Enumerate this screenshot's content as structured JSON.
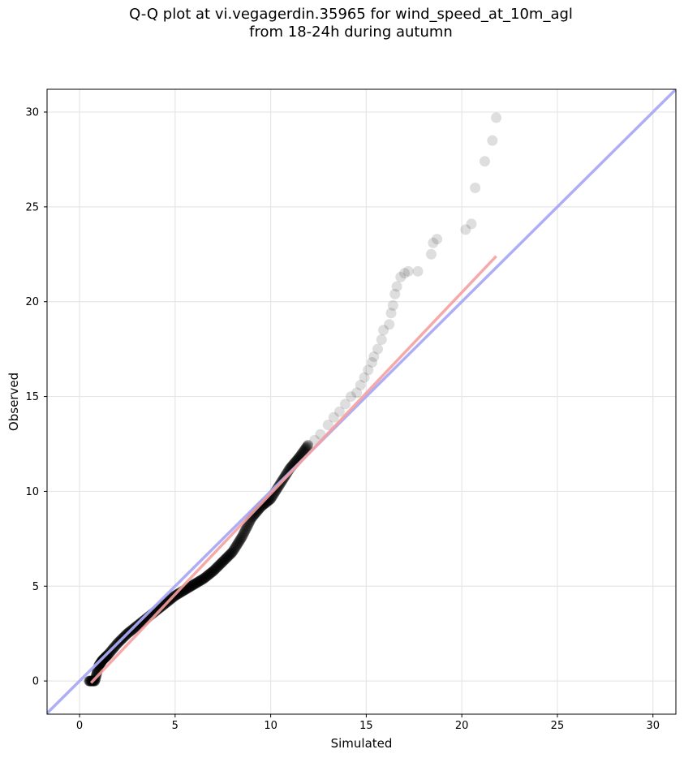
{
  "chart_data": {
    "type": "scatter",
    "title_line1": "Q-Q plot at vi.vegagerdin.35965 for wind_speed_at_10m_agl",
    "title_line2": "from 18-24h during autumn",
    "xlabel": "Simulated",
    "ylabel": "Observed",
    "xlim": [
      -1.7,
      31.2
    ],
    "ylim": [
      -1.75,
      31.2
    ],
    "xticks": [
      0,
      5,
      10,
      15,
      20,
      25,
      30
    ],
    "yticks": [
      0,
      5,
      10,
      15,
      20,
      25,
      30
    ],
    "grid": true,
    "colors": {
      "points": "#000000",
      "identity_line": "#aaaaf5",
      "fit_line": "#f5a0a0",
      "grid": "#e6e6e6"
    },
    "dense_segments": [
      [
        0.5,
        0.0
      ],
      [
        0.8,
        0.0
      ],
      [
        1.0,
        0.8
      ],
      [
        1.2,
        1.1
      ],
      [
        1.5,
        1.4
      ],
      [
        2.0,
        2.0
      ],
      [
        2.5,
        2.5
      ],
      [
        3.0,
        2.9
      ],
      [
        3.5,
        3.3
      ],
      [
        4.0,
        3.7
      ],
      [
        4.5,
        4.1
      ],
      [
        5.0,
        4.5
      ],
      [
        5.5,
        4.8
      ],
      [
        6.0,
        5.1
      ],
      [
        6.5,
        5.4
      ],
      [
        7.0,
        5.8
      ],
      [
        7.5,
        6.3
      ],
      [
        8.0,
        6.8
      ],
      [
        8.5,
        7.6
      ],
      [
        9.0,
        8.6
      ],
      [
        9.5,
        9.2
      ],
      [
        10.0,
        9.6
      ],
      [
        10.5,
        10.4
      ],
      [
        11.0,
        11.2
      ],
      [
        11.5,
        11.8
      ],
      [
        12.0,
        12.5
      ]
    ],
    "tail_points": [
      [
        12.3,
        12.7
      ],
      [
        12.6,
        13.0
      ],
      [
        13.0,
        13.5
      ],
      [
        13.3,
        13.9
      ],
      [
        13.6,
        14.2
      ],
      [
        13.9,
        14.6
      ],
      [
        14.2,
        15.0
      ],
      [
        14.5,
        15.2
      ],
      [
        14.7,
        15.6
      ],
      [
        14.9,
        16.0
      ],
      [
        15.1,
        16.4
      ],
      [
        15.3,
        16.8
      ],
      [
        15.4,
        17.1
      ],
      [
        15.6,
        17.5
      ],
      [
        15.8,
        18.0
      ],
      [
        15.9,
        18.5
      ],
      [
        16.2,
        18.8
      ],
      [
        16.3,
        19.4
      ],
      [
        16.4,
        19.8
      ],
      [
        16.5,
        20.4
      ],
      [
        16.6,
        20.8
      ],
      [
        16.8,
        21.3
      ],
      [
        17.0,
        21.5
      ],
      [
        17.2,
        21.6
      ],
      [
        17.7,
        21.6
      ],
      [
        18.4,
        22.5
      ],
      [
        18.5,
        23.1
      ],
      [
        18.7,
        23.3
      ],
      [
        20.2,
        23.8
      ],
      [
        20.5,
        24.1
      ],
      [
        20.7,
        26.0
      ],
      [
        21.2,
        27.4
      ],
      [
        21.6,
        28.5
      ],
      [
        21.8,
        29.7
      ]
    ],
    "identity_line": [
      [
        -1.7,
        -1.7
      ],
      [
        31.2,
        31.2
      ]
    ],
    "fit_line": [
      [
        0.6,
        -0.1
      ],
      [
        21.8,
        22.4
      ]
    ]
  }
}
